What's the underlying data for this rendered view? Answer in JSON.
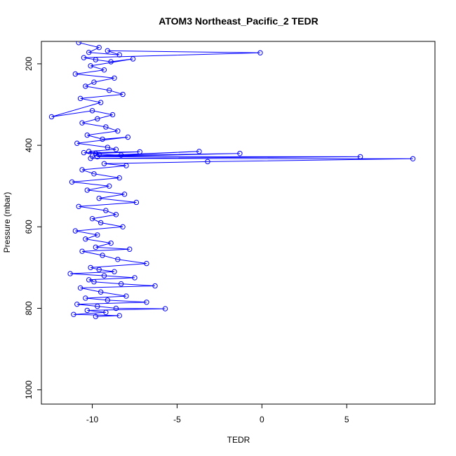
{
  "chart_data": {
    "type": "line",
    "title": "ATOM3 Northeast_Pacific_2 TEDR",
    "xlabel": "TEDR",
    "ylabel": "Pressure (mbar)",
    "xlim": [
      -13,
      10.2
    ],
    "ylim": [
      1035,
      145
    ],
    "y_inverted": true,
    "x_ticks": [
      -10,
      -5,
      0,
      5
    ],
    "x_tick_labels": [
      "-10",
      "-5",
      "0",
      "5"
    ],
    "y_ticks": [
      200,
      400,
      600,
      800,
      1000
    ],
    "y_tick_labels": [
      "200",
      "400",
      "600",
      "800",
      "1000"
    ],
    "grid": false,
    "legend": "none",
    "series_color": "#0000ff",
    "marker": "open-circle",
    "series": [
      {
        "x": [
          -10.8,
          -9.6,
          -10.2,
          -8.4,
          -9.1,
          -0.1,
          -10.5,
          -9.8,
          -8.9,
          -7.6,
          -10.1,
          -9.3,
          -11.0,
          -8.7,
          -9.9,
          -10.4,
          -9.0,
          -8.2,
          -10.7,
          -9.5,
          -12.4,
          -10.0,
          -8.8,
          -9.7,
          -10.6,
          -9.2,
          -8.5,
          -10.3,
          -9.4,
          -7.9,
          -10.9,
          -9.1,
          -8.6,
          -10.2,
          -9.8,
          -7.2,
          -10.5,
          -9.6,
          -8.3,
          -3.7,
          -10.0,
          -1.3,
          -9.7,
          5.8,
          -10.1,
          8.9,
          -3.2,
          -9.3,
          -8.0,
          -10.6,
          -9.9,
          -8.4,
          -11.2,
          -9.0,
          -10.3,
          -8.1,
          -9.6,
          -7.4,
          -10.8,
          -9.2,
          -8.6,
          -10.0,
          -9.5,
          -8.2,
          -11.0,
          -9.7,
          -10.4,
          -8.9,
          -9.8,
          -7.8,
          -10.6,
          -9.4,
          -8.5,
          -6.8,
          -10.1,
          -9.6,
          -8.7,
          -11.3,
          -9.3,
          -7.5,
          -10.2,
          -9.9,
          -8.3,
          -6.3,
          -10.7,
          -9.5,
          -8.0,
          -10.4,
          -9.1,
          -6.8,
          -10.9,
          -9.7,
          -8.6,
          -5.7,
          -10.3,
          -9.2,
          -11.1,
          -8.4,
          -9.8
        ],
        "y": [
          148,
          160,
          172,
          178,
          168,
          173,
          185,
          190,
          195,
          188,
          205,
          215,
          225,
          235,
          245,
          255,
          265,
          275,
          285,
          295,
          330,
          315,
          325,
          335,
          345,
          355,
          365,
          375,
          385,
          380,
          395,
          405,
          410,
          415,
          420,
          416,
          418,
          422,
          424,
          415,
          426,
          420,
          428,
          428,
          432,
          433,
          440,
          445,
          450,
          460,
          470,
          480,
          490,
          500,
          510,
          520,
          530,
          540,
          550,
          560,
          570,
          580,
          590,
          600,
          610,
          620,
          630,
          640,
          650,
          655,
          660,
          670,
          680,
          690,
          700,
          705,
          710,
          715,
          720,
          725,
          730,
          735,
          740,
          745,
          750,
          760,
          770,
          775,
          780,
          785,
          790,
          795,
          800,
          801,
          805,
          810,
          815,
          818,
          820
        ]
      }
    ]
  }
}
